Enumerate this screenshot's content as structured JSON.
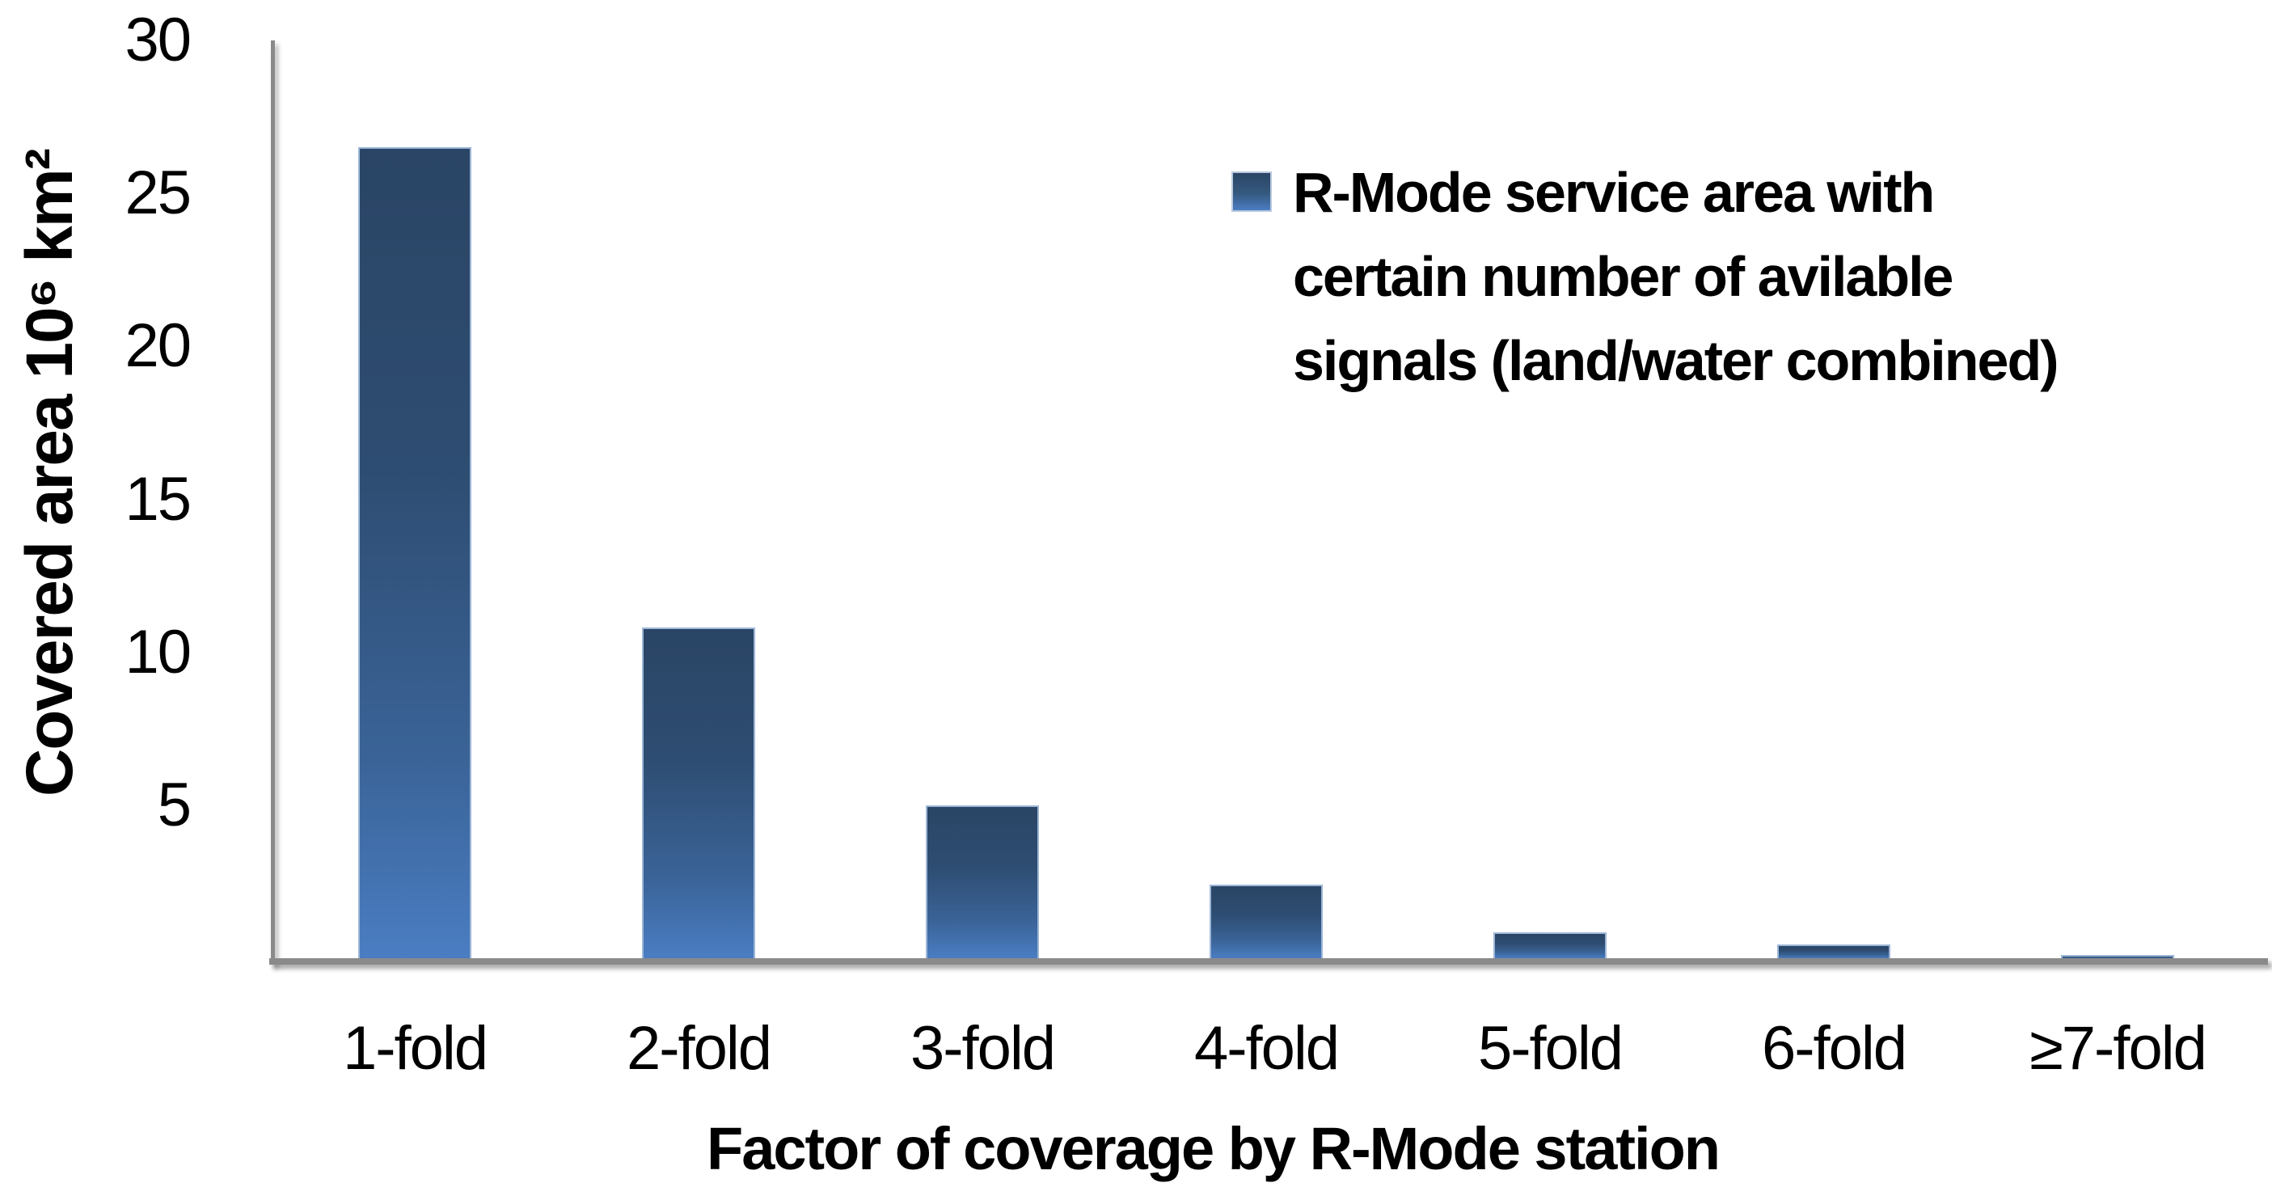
{
  "chart_data": {
    "type": "bar",
    "title": "",
    "categories": [
      "1-fold",
      "2-fold",
      "3-fold",
      "4-fold",
      "5-fold",
      "6-fold",
      "≥7-fold"
    ],
    "values": [
      26.5,
      10.8,
      5.0,
      2.4,
      0.85,
      0.45,
      0.1
    ],
    "xlabel": "Factor of coverage by R-Mode station",
    "ylabel": "Covered area 10⁶ km²",
    "ylim": [
      0,
      30
    ],
    "yticks": [
      30,
      25,
      20,
      15,
      10,
      5
    ],
    "grid": false,
    "legend": {
      "position": "top-right",
      "label": "R-Mode service area with certain number of avilable signals (land/water combined)",
      "lines": [
        "R-Mode service area with",
        "certain number of avilable",
        "signals (land/water combined)"
      ]
    },
    "colors": {
      "bar_gradient_top": "#2a4565",
      "bar_gradient_bottom": "#4a7dc2",
      "bar_border": "#9db6d6",
      "axis_line": "#8a8a8a",
      "text": "#000000",
      "background": "#ffffff"
    }
  }
}
